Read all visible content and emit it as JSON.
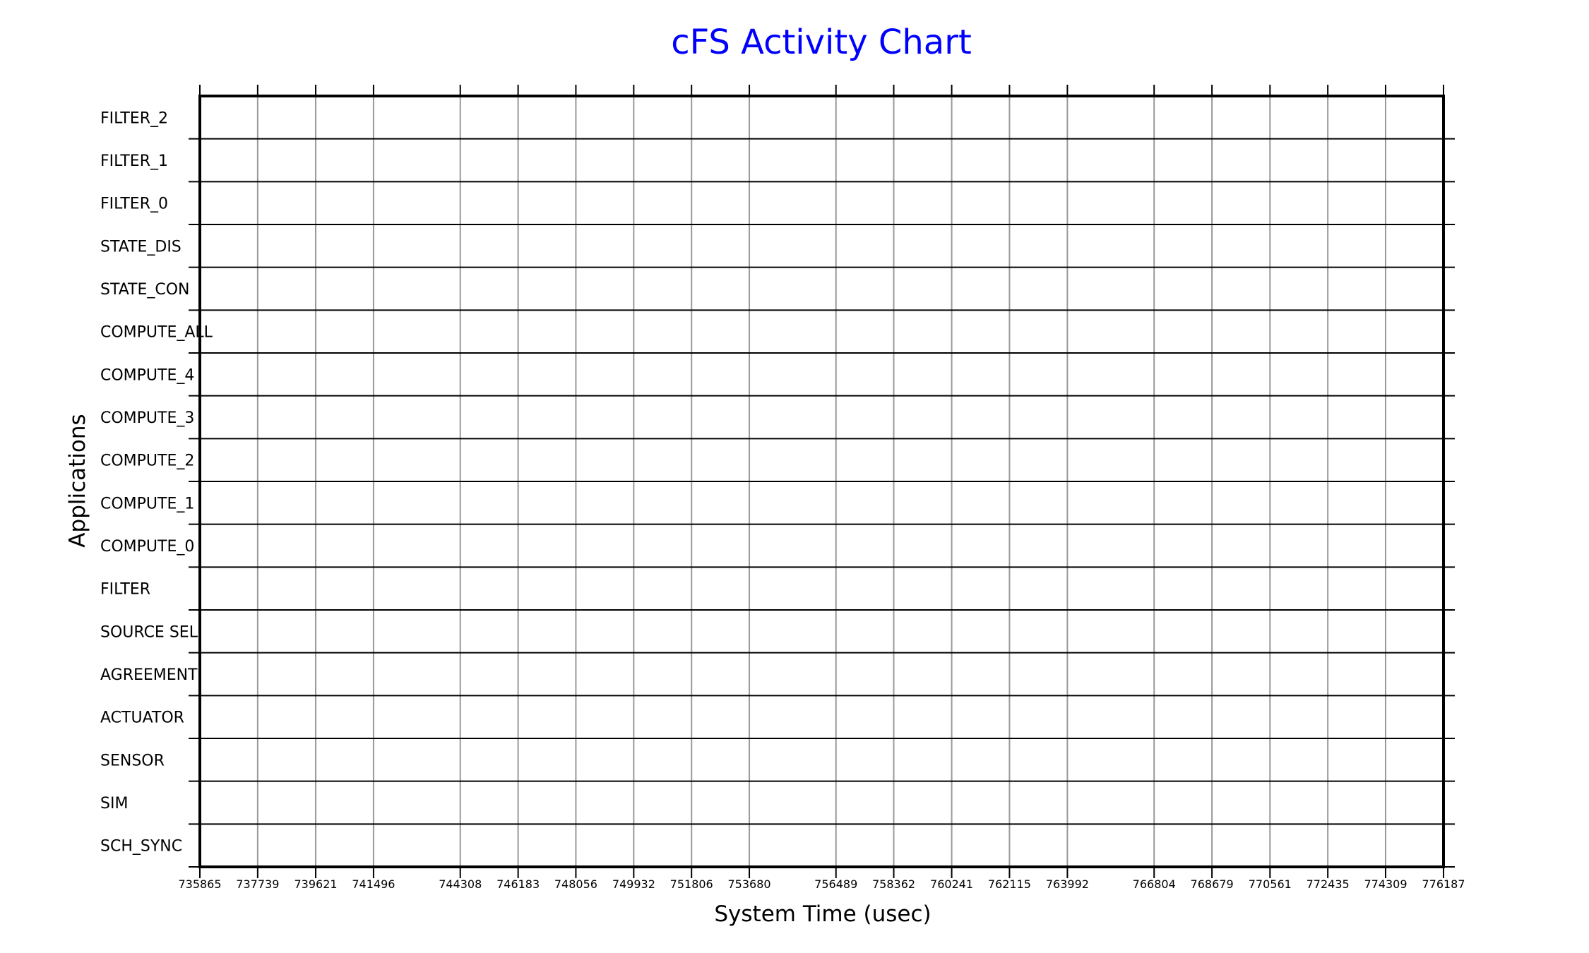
{
  "colors": {
    "title": "#0000ff",
    "grid": "#999999",
    "row_line": "#000000",
    "frame": "#000000"
  },
  "chart_data": {
    "type": "table",
    "title": "cFS Activity Chart",
    "xlabel": "System Time (usec)",
    "ylabel": "Applications",
    "grid": true,
    "rows": [
      "FILTER_2",
      "FILTER_1",
      "FILTER_0",
      "STATE_DIS",
      "STATE_CON",
      "COMPUTE_ALL",
      "COMPUTE_4",
      "COMPUTE_3",
      "COMPUTE_2",
      "COMPUTE_1",
      "COMPUTE_0",
      "FILTER",
      "SOURCE SEL",
      "AGREEMENT",
      "ACTUATOR",
      "SENSOR",
      "SIM",
      "SCH_SYNC"
    ],
    "x_ticks": [
      735865,
      737739,
      739621,
      741496,
      744308,
      746183,
      748056,
      749932,
      751806,
      753680,
      756489,
      758362,
      760241,
      762115,
      763992,
      766804,
      768679,
      770561,
      772435,
      774309,
      776187
    ],
    "xlim": [
      735865,
      776187
    ],
    "series": []
  }
}
